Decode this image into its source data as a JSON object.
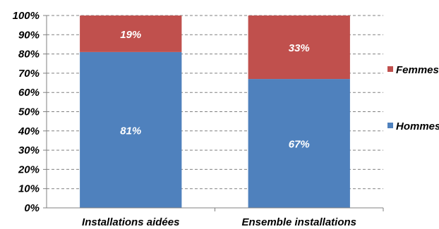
{
  "chart_data": {
    "type": "bar",
    "stacked": true,
    "categories": [
      "Installations aidées",
      "Ensemble installations"
    ],
    "series": [
      {
        "name": "Hommes",
        "values": [
          81,
          67
        ],
        "labels": [
          "81%",
          "67%"
        ],
        "color": "#4f81bd"
      },
      {
        "name": "Femmes",
        "values": [
          19,
          33
        ],
        "labels": [
          "19%",
          "33%"
        ],
        "color": "#c0504d"
      }
    ],
    "ylim": [
      0,
      100
    ],
    "yticks": [
      "0%",
      "10%",
      "20%",
      "30%",
      "40%",
      "50%",
      "60%",
      "70%",
      "80%",
      "90%",
      "100%"
    ],
    "grid": true,
    "legend": "right"
  }
}
